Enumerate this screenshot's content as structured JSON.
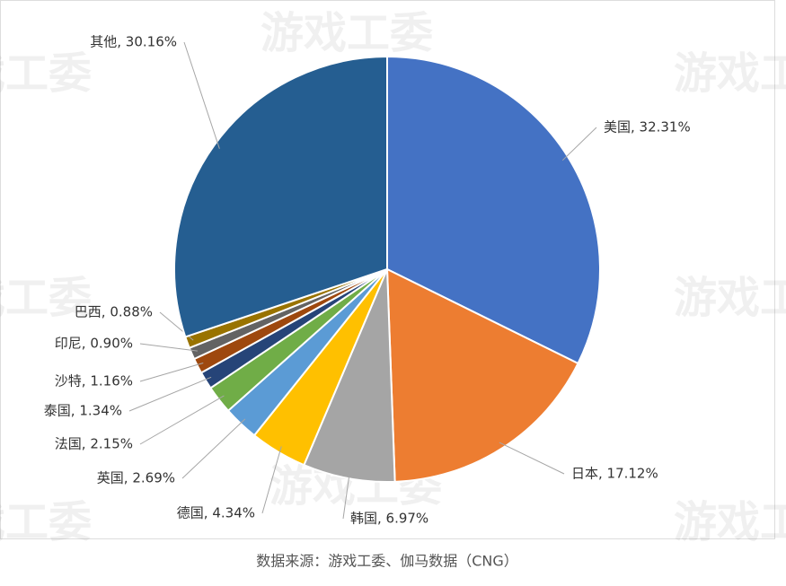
{
  "chart_data": {
    "type": "pie",
    "values": [
      32.31,
      17.12,
      6.97,
      4.34,
      2.69,
      2.15,
      1.34,
      1.16,
      0.9,
      0.88,
      30.16
    ],
    "value_labels": [
      "美国, 32.31%",
      "日本, 17.12%",
      "韩国, 6.97%",
      "德国, 4.34%",
      "英国, 2.69%",
      "法国, 2.15%",
      "泰国, 1.34%",
      "沙特, 1.16%",
      "印尼, 0.90%",
      "巴西, 0.88%",
      "其他, 30.16%"
    ],
    "colors": [
      "#4472c4",
      "#ed7d31",
      "#a5a5a5",
      "#ffc000",
      "#5b9bd5",
      "#70ad47",
      "#264478",
      "#9e480e",
      "#636363",
      "#997300",
      "#255e91"
    ],
    "source": "数据来源：游戏工委、伽马数据（CNG）",
    "watermark": "游戏工委"
  }
}
